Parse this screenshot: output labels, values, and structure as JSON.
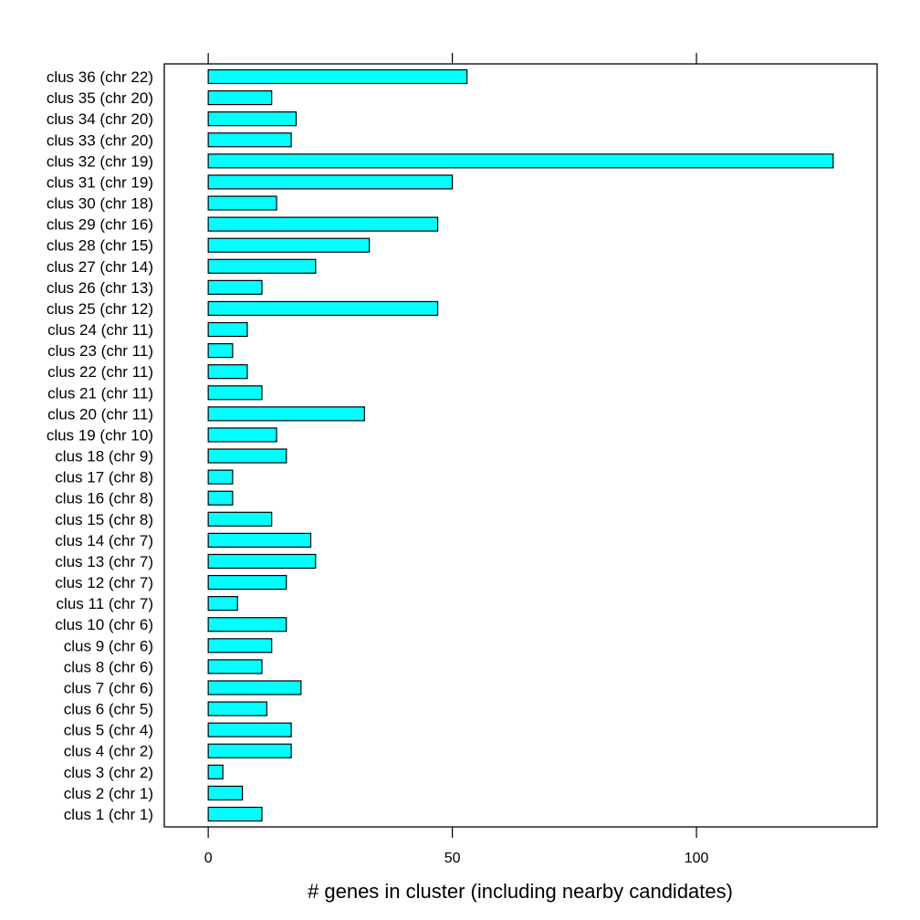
{
  "chart_data": {
    "type": "bar",
    "orientation": "horizontal",
    "title": "",
    "xlabel": "# genes in cluster (including nearby candidates)",
    "ylabel": "",
    "xlim": [
      -9,
      137
    ],
    "xticks": [
      0,
      50,
      100
    ],
    "grid": false,
    "legend": "none",
    "bar_color": "#00FFFF",
    "bar_edge_color": "#000000",
    "categories": [
      "clus 1 (chr 1)",
      "clus 2 (chr 1)",
      "clus 3 (chr 2)",
      "clus 4 (chr 2)",
      "clus 5 (chr 4)",
      "clus 6 (chr 5)",
      "clus 7 (chr 6)",
      "clus 8 (chr 6)",
      "clus 9 (chr 6)",
      "clus 10 (chr 6)",
      "clus 11 (chr 7)",
      "clus 12 (chr 7)",
      "clus 13 (chr 7)",
      "clus 14 (chr 7)",
      "clus 15 (chr 8)",
      "clus 16 (chr 8)",
      "clus 17 (chr 8)",
      "clus 18 (chr 9)",
      "clus 19 (chr 10)",
      "clus 20 (chr 11)",
      "clus 21 (chr 11)",
      "clus 22 (chr 11)",
      "clus 23 (chr 11)",
      "clus 24 (chr 11)",
      "clus 25 (chr 12)",
      "clus 26 (chr 13)",
      "clus 27 (chr 14)",
      "clus 28 (chr 15)",
      "clus 29 (chr 16)",
      "clus 30 (chr 18)",
      "clus 31 (chr 19)",
      "clus 32 (chr 19)",
      "clus 33 (chr 20)",
      "clus 34 (chr 20)",
      "clus 35 (chr 20)",
      "clus 36 (chr 22)"
    ],
    "values": [
      11,
      7,
      3,
      17,
      17,
      12,
      19,
      11,
      13,
      16,
      6,
      16,
      22,
      21,
      13,
      5,
      5,
      16,
      14,
      32,
      11,
      8,
      5,
      8,
      47,
      11,
      22,
      33,
      47,
      14,
      50,
      128,
      17,
      18,
      13,
      53
    ]
  }
}
